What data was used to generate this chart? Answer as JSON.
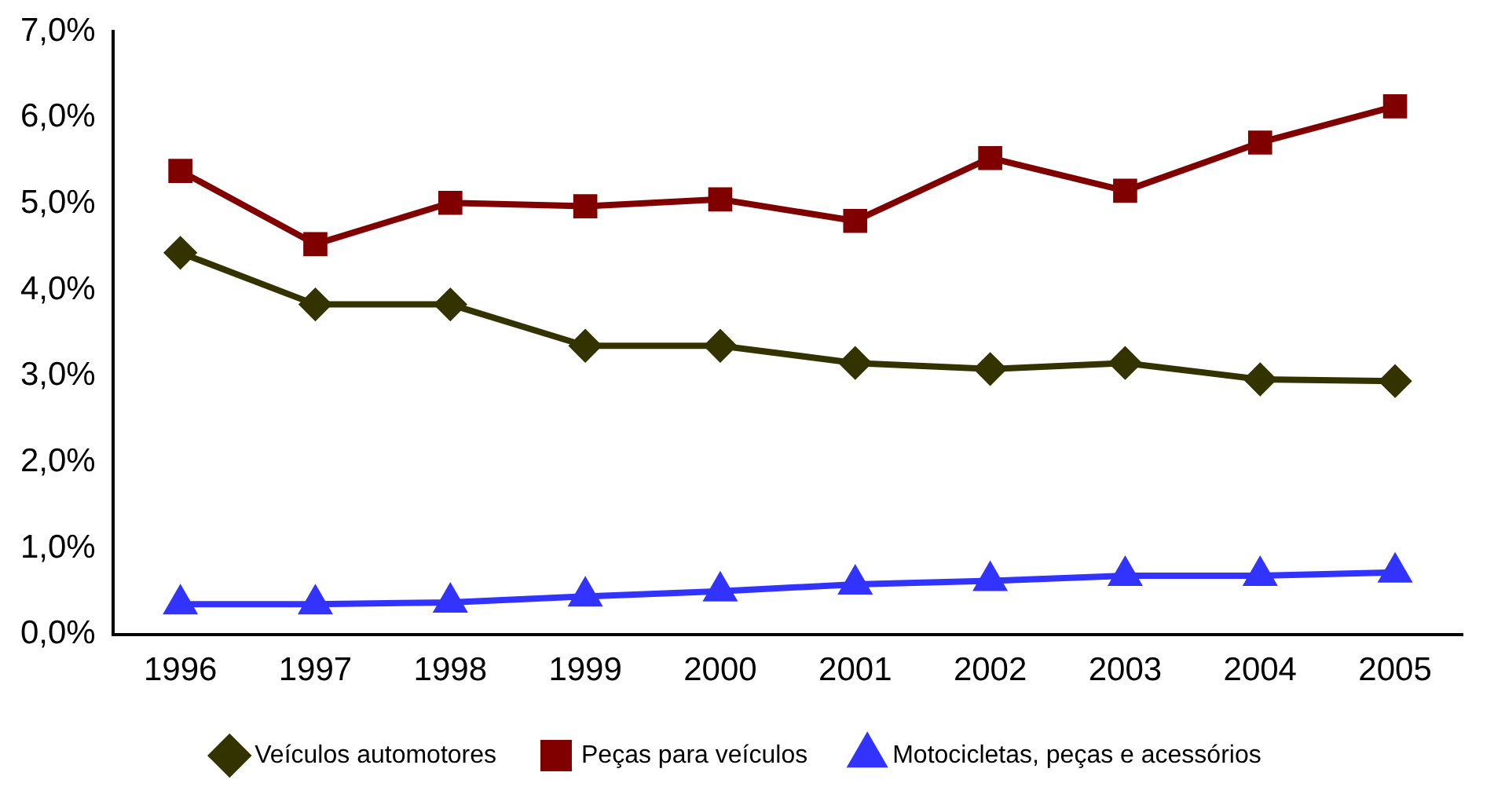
{
  "chart_data": {
    "type": "line",
    "categories": [
      "1996",
      "1997",
      "1998",
      "1999",
      "2000",
      "2001",
      "2002",
      "2003",
      "2004",
      "2005"
    ],
    "series": [
      {
        "name": "Veículos automotores",
        "color": "#333300",
        "marker": "diamond",
        "values": [
          4.43,
          3.83,
          3.83,
          3.35,
          3.35,
          3.15,
          3.08,
          3.15,
          2.96,
          2.94
        ]
      },
      {
        "name": "Peças para veículos",
        "color": "#800000",
        "marker": "square",
        "values": [
          5.38,
          4.53,
          5.01,
          4.97,
          5.05,
          4.8,
          5.53,
          5.15,
          5.71,
          6.13
        ]
      },
      {
        "name": "Motocicletas, peças e acessórios",
        "color": "#3333ff",
        "marker": "triangle",
        "values": [
          0.35,
          0.35,
          0.37,
          0.44,
          0.5,
          0.58,
          0.62,
          0.68,
          0.68,
          0.72
        ]
      }
    ],
    "ylim": [
      0,
      7
    ],
    "yticks": [
      {
        "value": 0,
        "label": "0,0%"
      },
      {
        "value": 1,
        "label": "1,0%"
      },
      {
        "value": 2,
        "label": "2,0%"
      },
      {
        "value": 3,
        "label": "3,0%"
      },
      {
        "value": 4,
        "label": "4,0%"
      },
      {
        "value": 5,
        "label": "5,0%"
      },
      {
        "value": 6,
        "label": "6,0%"
      },
      {
        "value": 7,
        "label": "7,0%"
      }
    ],
    "grid": false,
    "legend": "bottom"
  }
}
